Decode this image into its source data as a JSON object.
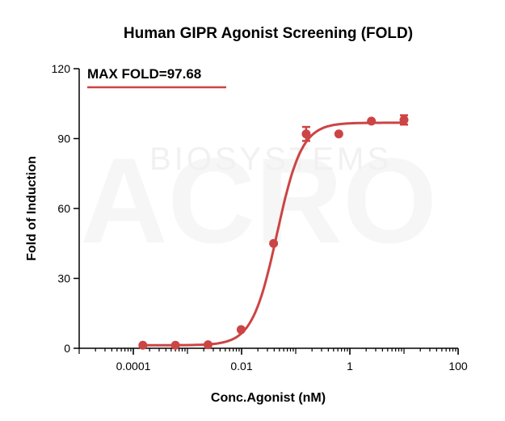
{
  "chart_data": {
    "type": "scatter",
    "title": "Human GIPR Agonist Screening (FOLD)",
    "xlabel": "Conc.Agonist (nM)",
    "ylabel": "Fold of Induction",
    "xscale": "log",
    "xlim": [
      1e-05,
      100
    ],
    "ylim": [
      0,
      120
    ],
    "xticks": [
      {
        "value": 0.0001,
        "label": "0.0001"
      },
      {
        "value": 0.01,
        "label": "0.01"
      },
      {
        "value": 1,
        "label": "1"
      },
      {
        "value": 100,
        "label": "100"
      }
    ],
    "yticks": [
      {
        "value": 0,
        "label": "0"
      },
      {
        "value": 30,
        "label": "30"
      },
      {
        "value": 60,
        "label": "60"
      },
      {
        "value": 90,
        "label": "90"
      },
      {
        "value": 120,
        "label": "120"
      }
    ],
    "annotation": "MAX FOLD=97.68",
    "color": "#cc4444",
    "series": [
      {
        "points": [
          {
            "x": 0.00015,
            "y": 1.3,
            "err": 0
          },
          {
            "x": 0.0006,
            "y": 1.3,
            "err": 0
          },
          {
            "x": 0.0024,
            "y": 1.5,
            "err": 0
          },
          {
            "x": 0.0098,
            "y": 8,
            "err": 0
          },
          {
            "x": 0.039,
            "y": 45,
            "err": 0
          },
          {
            "x": 0.156,
            "y": 92,
            "err": 3
          },
          {
            "x": 0.625,
            "y": 92,
            "err": 0
          },
          {
            "x": 2.5,
            "y": 97.5,
            "err": 0
          },
          {
            "x": 10,
            "y": 98,
            "err": 2
          }
        ]
      }
    ],
    "fit": {
      "bottom": 1.3,
      "top": 96.8,
      "ec50": 0.045,
      "hill": 1.9
    }
  },
  "watermark": {
    "brand": "ACRO",
    "sub": "BIOSYSTEMS"
  }
}
